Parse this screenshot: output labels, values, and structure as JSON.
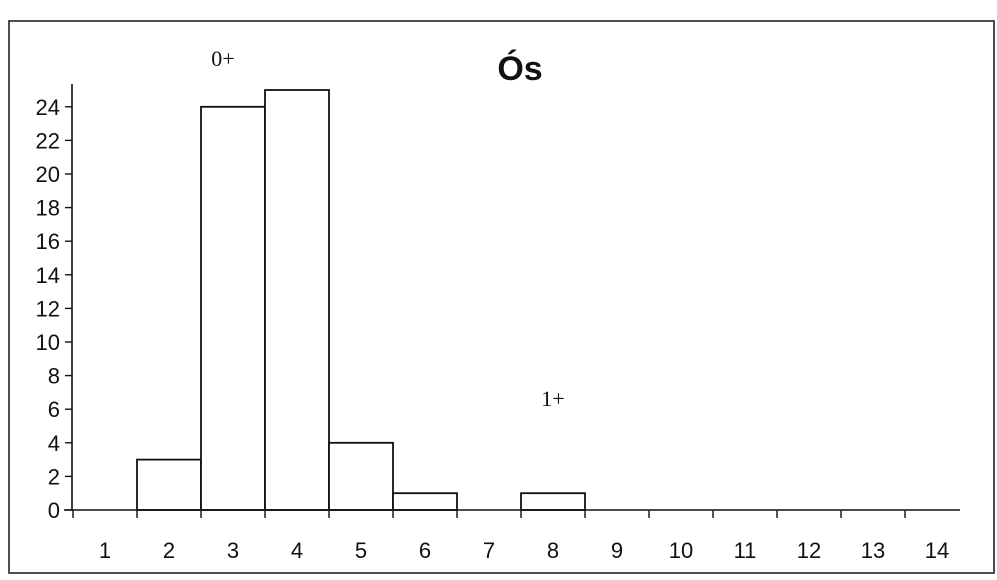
{
  "chart_data": {
    "type": "bar",
    "title": "Ós",
    "xlabel": "",
    "ylabel": "",
    "categories": [
      "1",
      "2",
      "3",
      "4",
      "5",
      "6",
      "7",
      "8",
      "9",
      "10",
      "11",
      "12",
      "13",
      "14"
    ],
    "values": [
      0,
      3,
      24,
      25,
      4,
      1,
      0,
      1,
      0,
      0,
      0,
      0,
      0,
      0
    ],
    "yticks": [
      "0",
      "2",
      "4",
      "6",
      "8",
      "10",
      "12",
      "14",
      "16",
      "18",
      "20",
      "22",
      "24"
    ],
    "ylim": [
      0,
      24
    ],
    "grid": false,
    "legend": "none",
    "annotations": [
      {
        "text": "0+",
        "x": "3"
      },
      {
        "text": "1+",
        "x": "8"
      }
    ]
  }
}
